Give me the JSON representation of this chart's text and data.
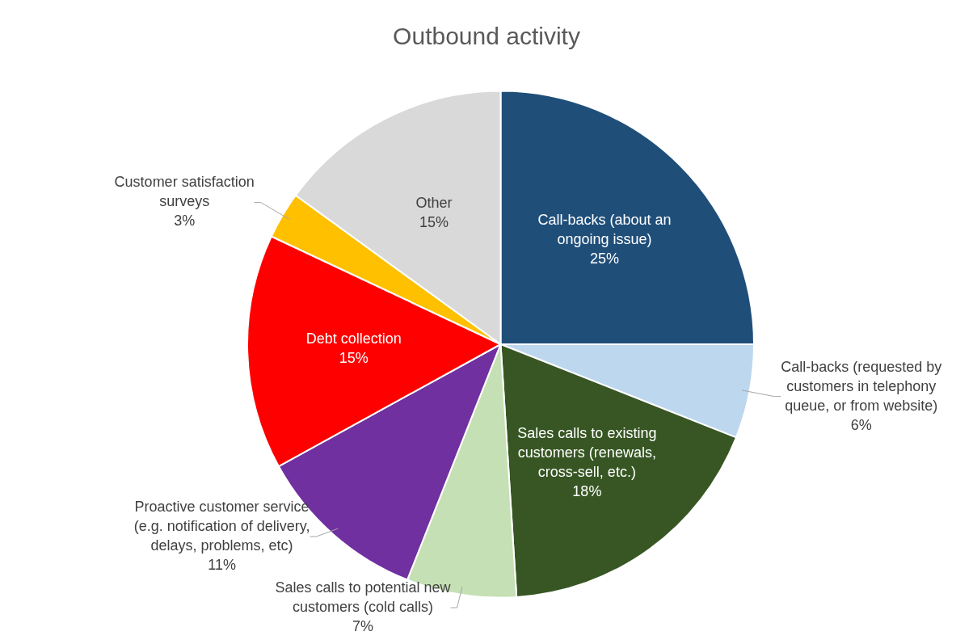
{
  "chart_data": {
    "type": "pie",
    "title": "Outbound activity",
    "categories": [
      "Call-backs (about an ongoing issue)",
      "Call-backs (requested by customers in telephony queue, or from website)",
      "Sales calls to existing customers (renewals, cross-sell, etc.)",
      "Sales calls to potential new customers (cold calls)",
      "Proactive customer service (e.g. notification of delivery, delays, problems, etc)",
      "Debt collection",
      "Customer satisfaction surveys",
      "Other"
    ],
    "values": [
      25,
      6,
      18,
      7,
      11,
      15,
      3,
      15
    ],
    "value_labels": [
      "25%",
      "6%",
      "18%",
      "7%",
      "11%",
      "15%",
      "3%",
      "15%"
    ],
    "colors": [
      "#1f4e79",
      "#bdd7ee",
      "#375623",
      "#c5e0b4",
      "#7030a0",
      "#ff0000",
      "#ffc000",
      "#d9d9d9"
    ],
    "legend": false
  }
}
